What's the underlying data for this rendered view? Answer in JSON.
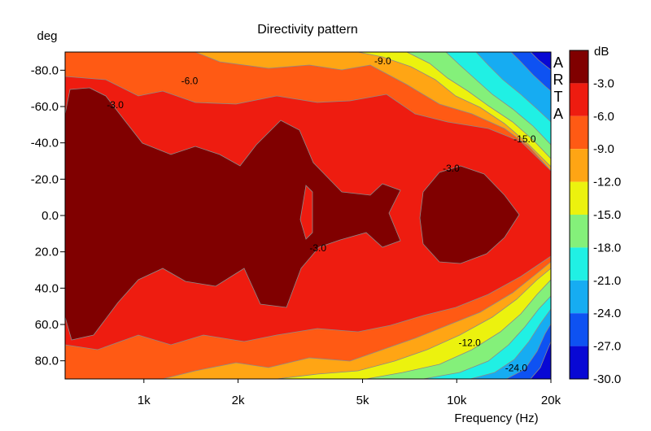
{
  "chart_data": {
    "type": "heatmap",
    "title": "Directivity pattern",
    "xlabel": "Frequency (Hz)",
    "ylabel": "deg",
    "x_scale": "log",
    "xlim_hz": [
      560,
      20000
    ],
    "ylim_deg": [
      -90,
      90
    ],
    "x_ticks": [
      {
        "value": 1000,
        "label": "1k"
      },
      {
        "value": 2000,
        "label": "2k"
      },
      {
        "value": 5000,
        "label": "5k"
      },
      {
        "value": 10000,
        "label": "10k"
      },
      {
        "value": 20000,
        "label": "20k"
      }
    ],
    "y_ticks": [
      {
        "value": -80,
        "label": "-80.0"
      },
      {
        "value": -60,
        "label": "-60.0"
      },
      {
        "value": -40,
        "label": "-40.0"
      },
      {
        "value": -20,
        "label": "-20.0"
      },
      {
        "value": 0,
        "label": "0.0"
      },
      {
        "value": 20,
        "label": "20.0"
      },
      {
        "value": 40,
        "label": "40.0"
      },
      {
        "value": 60,
        "label": "60.0"
      },
      {
        "value": 80,
        "label": "80.0"
      }
    ],
    "colorbar": {
      "unit_label": "dB",
      "levels": [
        {
          "label": "-3.0",
          "color": "#800000"
        },
        {
          "label": "-6.0",
          "color": "#ee1c10"
        },
        {
          "label": "-9.0",
          "color": "#ff5a14"
        },
        {
          "label": "-12.0",
          "color": "#ffa514"
        },
        {
          "label": "-15.0",
          "color": "#ecf20e"
        },
        {
          "label": "-18.0",
          "color": "#84f07a"
        },
        {
          "label": "-21.0",
          "color": "#20f0e4"
        },
        {
          "label": "-24.0",
          "color": "#16acf2"
        },
        {
          "label": "-27.0",
          "color": "#0e52f2"
        },
        {
          "label": "-30.0",
          "color": "#0808d4"
        }
      ]
    },
    "contour_labels": [
      {
        "text": "-3.0",
        "freq_hz": 810,
        "deg": -61
      },
      {
        "text": "-6.0",
        "freq_hz": 1400,
        "deg": -74
      },
      {
        "text": "-9.0",
        "freq_hz": 5800,
        "deg": -85
      },
      {
        "text": "-15.0",
        "freq_hz": 16500,
        "deg": -42
      },
      {
        "text": "-3.0",
        "freq_hz": 9600,
        "deg": -26
      },
      {
        "text": "-3.0",
        "freq_hz": 3600,
        "deg": 18
      },
      {
        "text": "-12.0",
        "freq_hz": 11000,
        "deg": 70
      },
      {
        "text": "-24.0",
        "freq_hz": 15500,
        "deg": 84
      }
    ],
    "watermark": "ARTA"
  }
}
